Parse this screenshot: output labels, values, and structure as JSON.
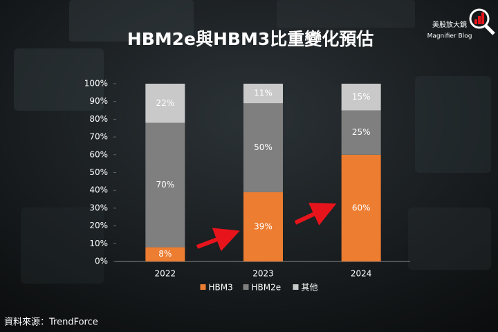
{
  "chart_data": {
    "type": "stacked_bar",
    "title": "HBM2e與HBM3比重變化預估",
    "brand": [
      "美股放大鏡",
      "Magnifier Blog"
    ],
    "source": "資料來源：TrendForce",
    "categories": [
      "2022",
      "2023",
      "2024"
    ],
    "series": [
      {
        "name": "HBM3",
        "color": "#ed7d31",
        "values": [
          8,
          39,
          60
        ],
        "value_labels": [
          "8%",
          "39%",
          "60%"
        ]
      },
      {
        "name": "HBM2e",
        "color": "#7f7f7f",
        "values": [
          70,
          50,
          25
        ],
        "value_labels": [
          "70%",
          "50%",
          "25%"
        ]
      },
      {
        "name": "其他",
        "color": "#c9c9c9",
        "values": [
          22,
          11,
          15
        ],
        "value_labels": [
          "22%",
          "11%",
          "15%"
        ]
      }
    ],
    "ylim": [
      0,
      100
    ],
    "yticks": [
      {
        "value": 0,
        "label": "0%"
      },
      {
        "value": 10,
        "label": "10%"
      },
      {
        "value": 20,
        "label": "20%"
      },
      {
        "value": 30,
        "label": "30%"
      },
      {
        "value": 40,
        "label": "40%"
      },
      {
        "value": 50,
        "label": "50%"
      },
      {
        "value": 60,
        "label": "60%"
      },
      {
        "value": 70,
        "label": "70%"
      },
      {
        "value": 80,
        "label": "80%"
      },
      {
        "value": 90,
        "label": "90%"
      },
      {
        "value": 100,
        "label": "100%"
      }
    ],
    "legend": "bottom"
  }
}
